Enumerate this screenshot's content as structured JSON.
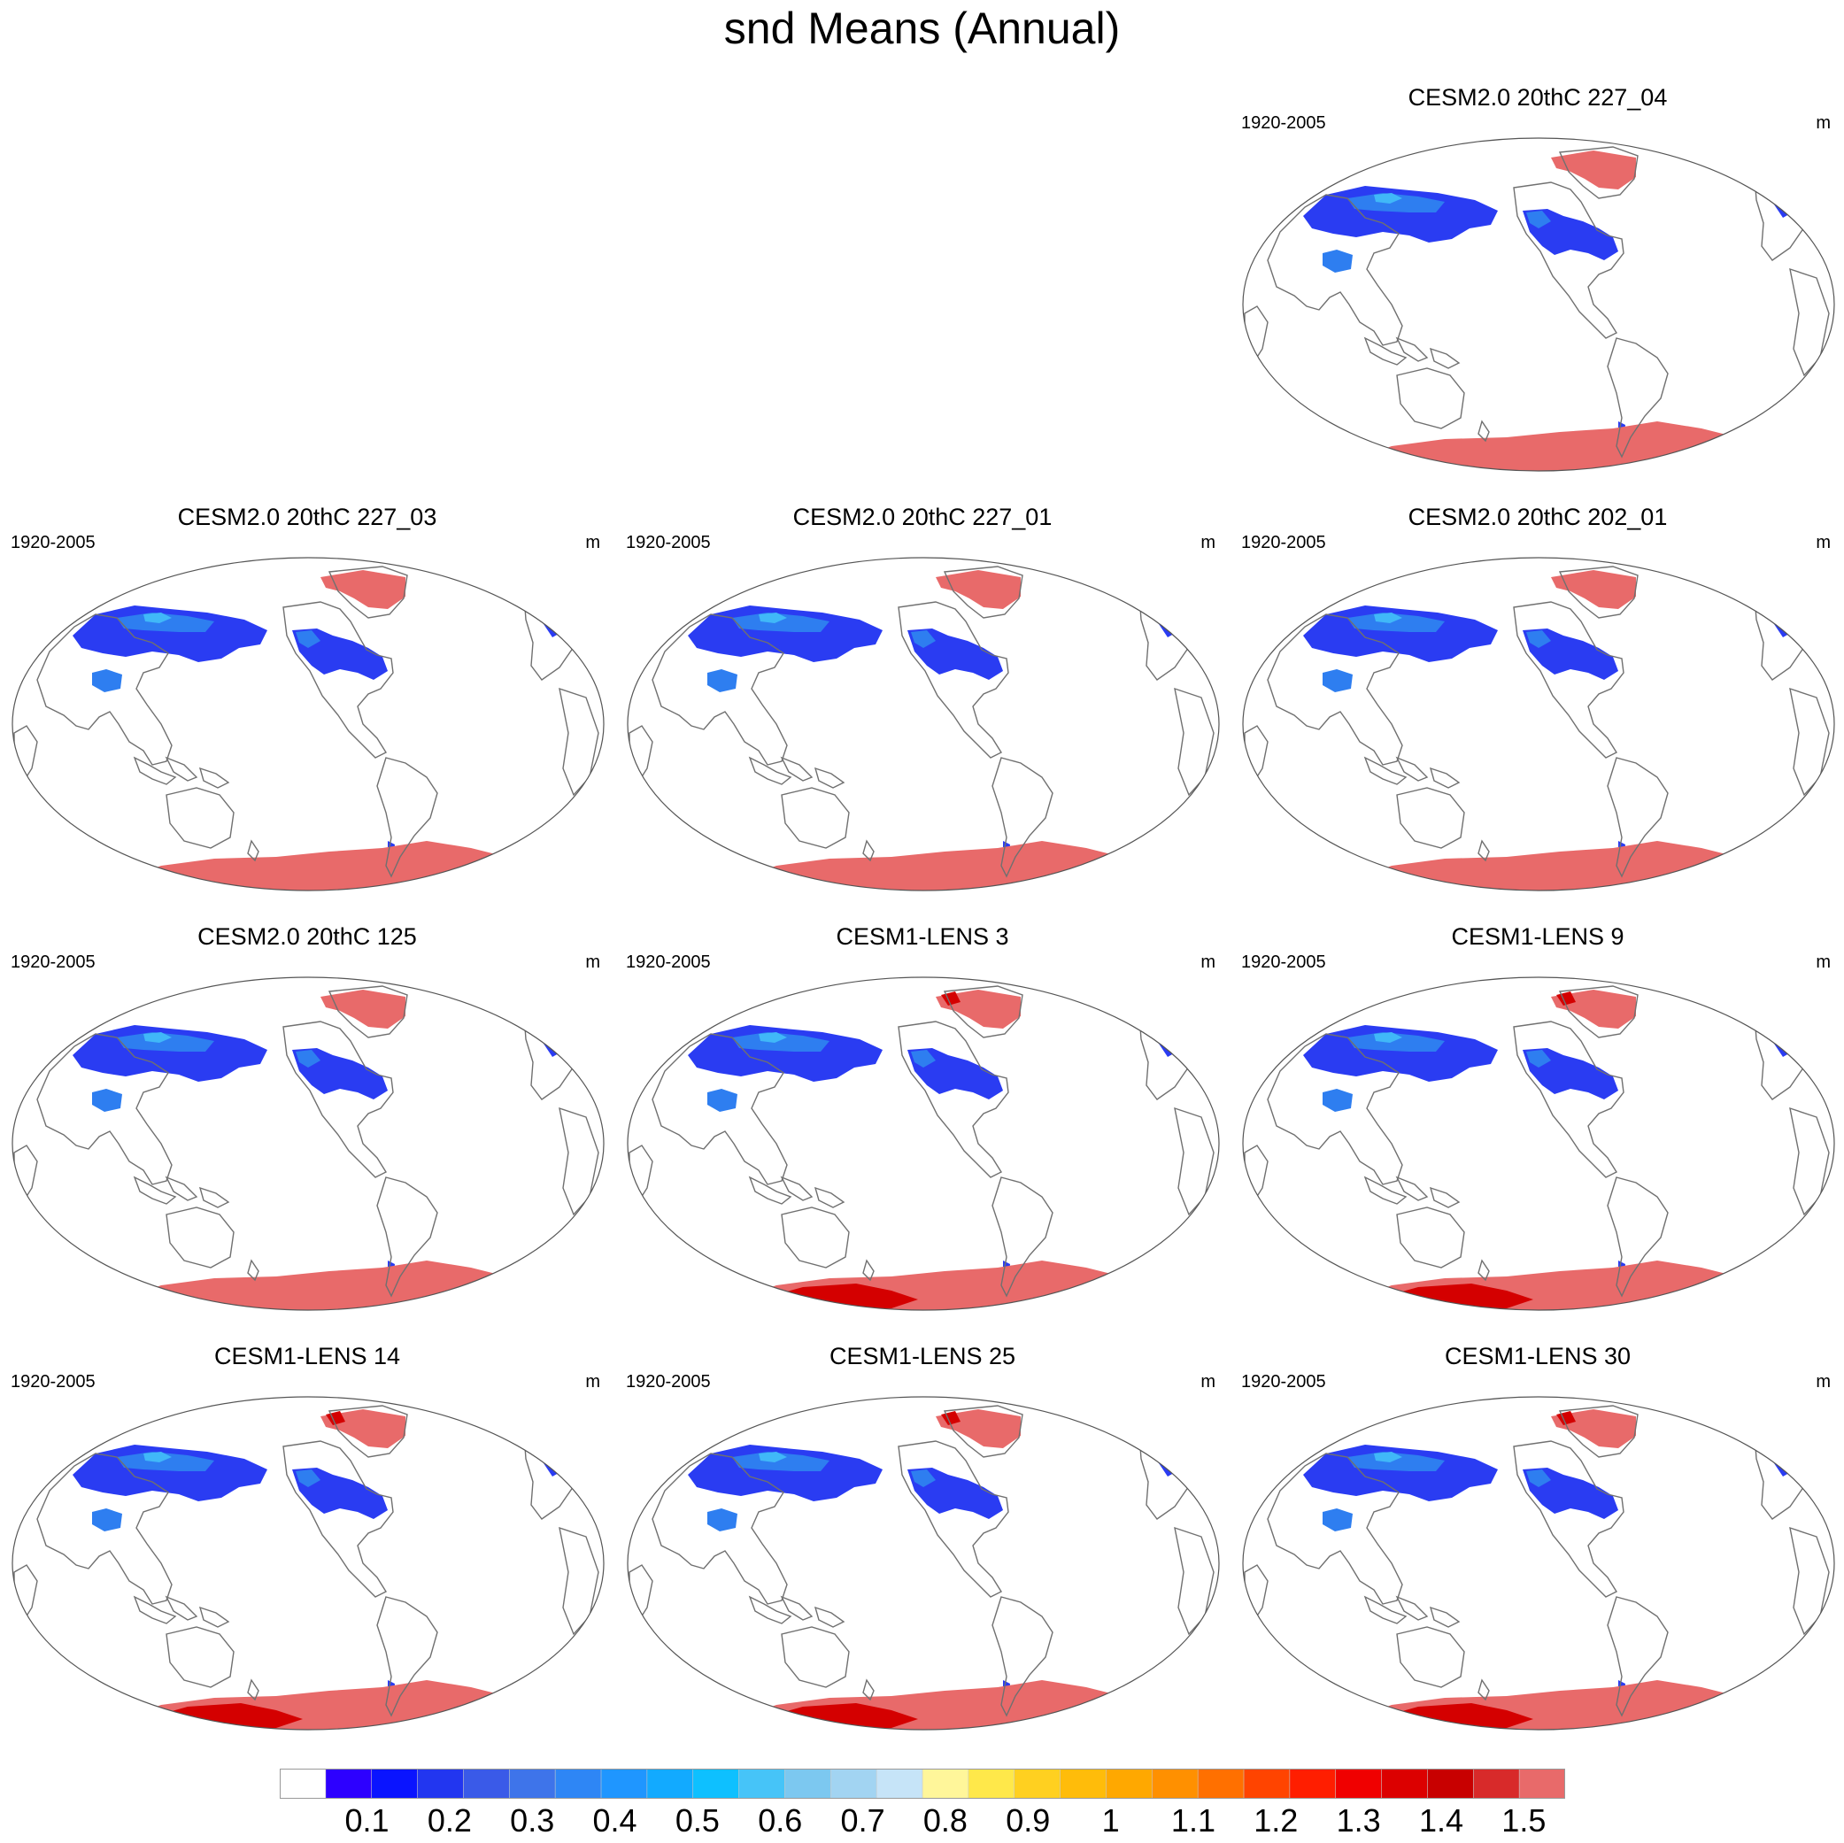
{
  "title": "snd Means (Annual)",
  "panels": [
    {
      "title": "CESM2.0 20thC 227_04",
      "years": "1920-2005",
      "units": "m",
      "model": "cesm2"
    },
    {
      "title": "CESM2.0 20thC 227_03",
      "years": "1920-2005",
      "units": "m",
      "model": "cesm2"
    },
    {
      "title": "CESM2.0 20thC 227_01",
      "years": "1920-2005",
      "units": "m",
      "model": "cesm2"
    },
    {
      "title": "CESM2.0 20thC 202_01",
      "years": "1920-2005",
      "units": "m",
      "model": "cesm2"
    },
    {
      "title": "CESM2.0 20thC 125",
      "years": "1920-2005",
      "units": "m",
      "model": "cesm2"
    },
    {
      "title": "CESM1-LENS 3",
      "years": "1920-2005",
      "units": "m",
      "model": "cesm1"
    },
    {
      "title": "CESM1-LENS 9",
      "years": "1920-2005",
      "units": "m",
      "model": "cesm1"
    },
    {
      "title": "CESM1-LENS 14",
      "years": "1920-2005",
      "units": "m",
      "model": "cesm1"
    },
    {
      "title": "CESM1-LENS 25",
      "years": "1920-2005",
      "units": "m",
      "model": "cesm1"
    },
    {
      "title": "CESM1-LENS 30",
      "years": "1920-2005",
      "units": "m",
      "model": "cesm1"
    }
  ],
  "colorbar": {
    "labels": [
      "0.1",
      "0.2",
      "0.3",
      "0.4",
      "0.5",
      "0.6",
      "0.7",
      "0.8",
      "0.9",
      "1",
      "1.1",
      "1.2",
      "1.3",
      "1.4",
      "1.5"
    ],
    "colors": [
      "#ffffff",
      "#2d00ff",
      "#0a14ff",
      "#2236f0",
      "#3a5ae8",
      "#3e74ea",
      "#2e86f5",
      "#1f96ff",
      "#12aaff",
      "#0ec0ff",
      "#46c4f8",
      "#7cc8f0",
      "#a2d4f2",
      "#c6e4f8",
      "#fff69a",
      "#ffe84a",
      "#ffd020",
      "#ffbc0a",
      "#ffa800",
      "#ff9000",
      "#ff7000",
      "#ff4400",
      "#ff1e00",
      "#f00000",
      "#dc0000",
      "#c80000",
      "#d82a2a",
      "#e86a6a"
    ]
  },
  "colors": {
    "snow_low": "#2a3cf2",
    "snow_mid": "#2e7ef0",
    "snow_light": "#40b8f8",
    "ice_cap": "#e86a6a",
    "snow_deep": "#d40000",
    "coast": "#707070",
    "border": "#555555"
  }
}
